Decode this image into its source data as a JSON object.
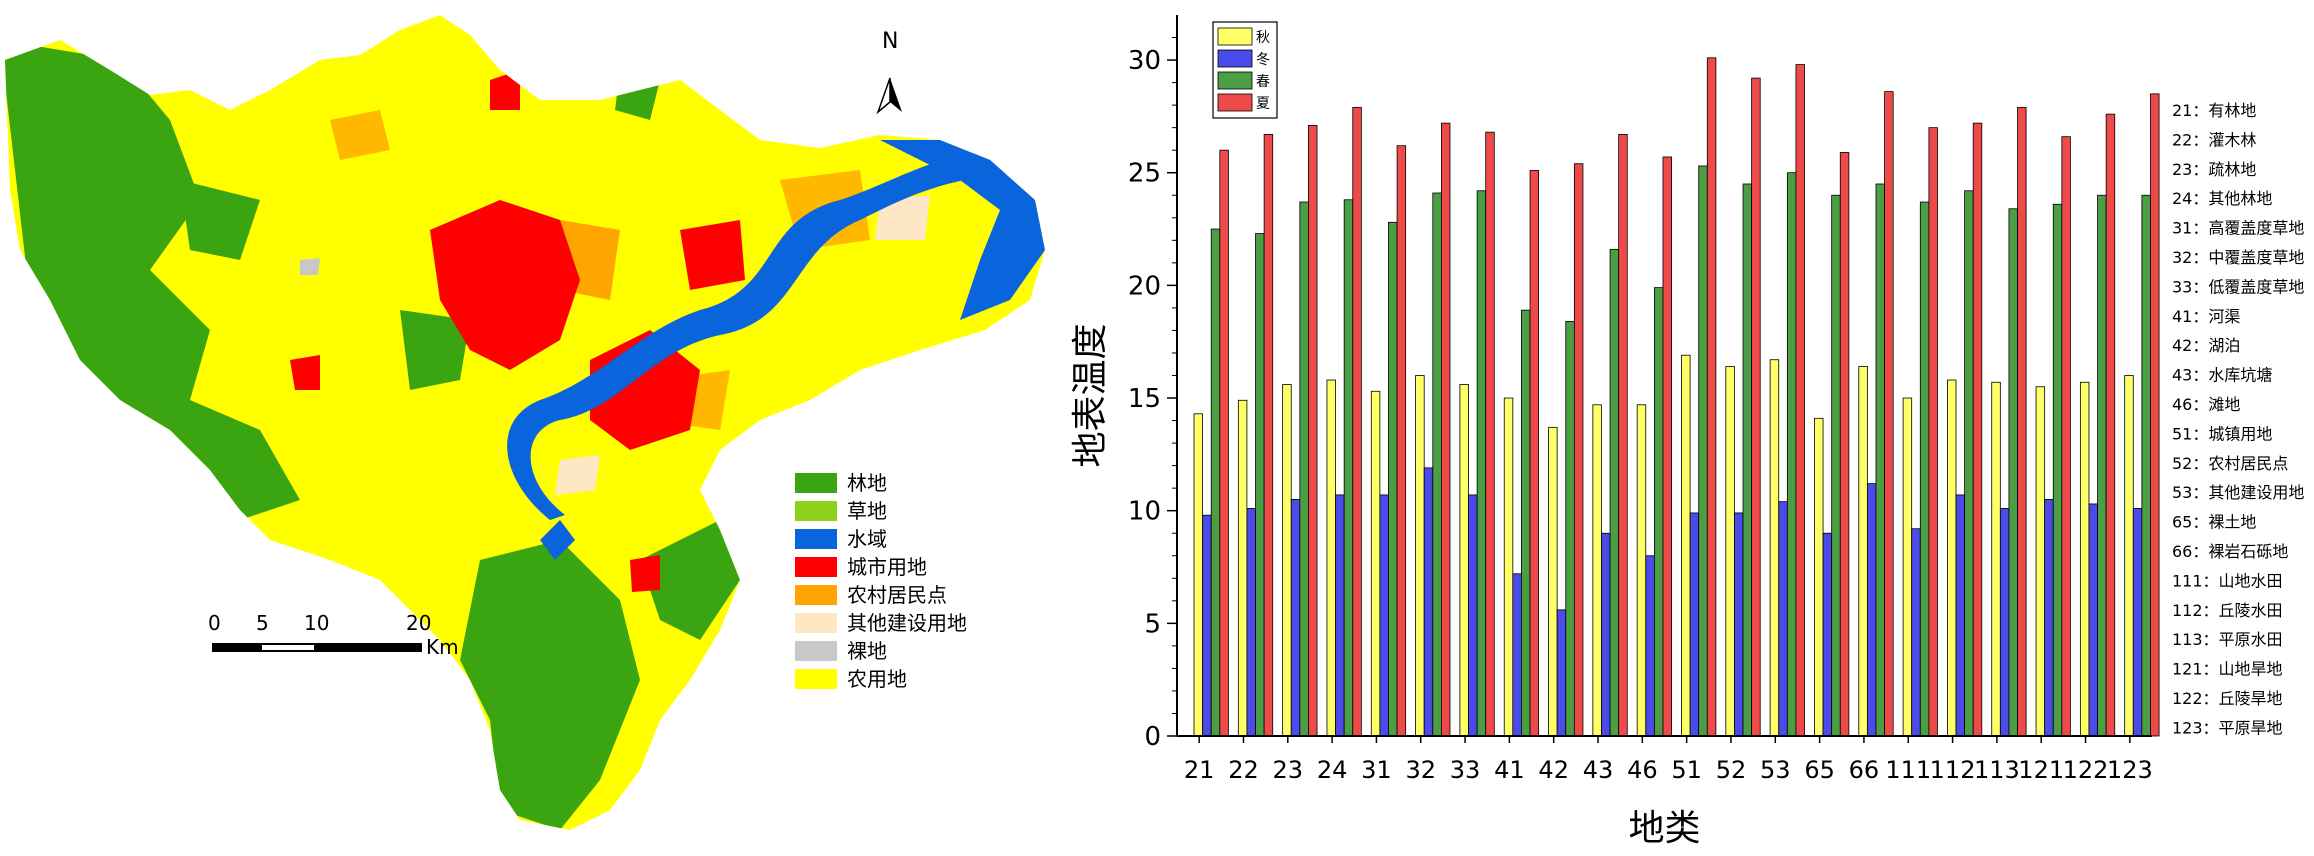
{
  "map": {
    "north_label": "N",
    "legend": [
      {
        "label": "林地",
        "color": "#3aa510"
      },
      {
        "label": "草地",
        "color": "#8fd21a"
      },
      {
        "label": "水域",
        "color": "#0a64dc"
      },
      {
        "label": "城市用地",
        "color": "#ff0000"
      },
      {
        "label": "农村居民点",
        "color": "#ffa500"
      },
      {
        "label": "其他建设用地",
        "color": "#fde7c4"
      },
      {
        "label": "裸地",
        "color": "#c8c8c8"
      },
      {
        "label": "农用地",
        "color": "#ffff00"
      }
    ],
    "scale_labels": [
      "0",
      "5",
      "10",
      "20"
    ],
    "scale_unit": "Km"
  },
  "chart_data": {
    "type": "bar",
    "xlabel": "地类",
    "ylabel": "地表温度",
    "ylim": [
      0,
      32
    ],
    "yticks": [
      0,
      5,
      10,
      15,
      20,
      25,
      30
    ],
    "categories": [
      "21",
      "22",
      "23",
      "24",
      "31",
      "32",
      "33",
      "41",
      "42",
      "43",
      "46",
      "51",
      "52",
      "53",
      "65",
      "66",
      "111",
      "112",
      "113",
      "121",
      "122",
      "123"
    ],
    "series": [
      {
        "name": "秋",
        "color": "#ffff66",
        "values": [
          14.3,
          14.9,
          15.6,
          15.8,
          15.3,
          16.0,
          15.6,
          15.0,
          13.7,
          14.7,
          14.7,
          16.9,
          16.4,
          16.7,
          14.1,
          16.4,
          15.0,
          15.8,
          15.7,
          15.5,
          15.7,
          16.0
        ]
      },
      {
        "name": "冬",
        "color": "#4b4bea",
        "values": [
          9.8,
          10.1,
          10.5,
          10.7,
          10.7,
          11.9,
          10.7,
          7.2,
          5.6,
          9.0,
          8.0,
          9.9,
          9.9,
          10.4,
          9.0,
          11.2,
          9.2,
          10.7,
          10.1,
          10.5,
          10.3,
          10.1
        ]
      },
      {
        "name": "春",
        "color": "#4c9e45",
        "values": [
          22.5,
          22.3,
          23.7,
          23.8,
          22.8,
          24.1,
          24.2,
          18.9,
          18.4,
          21.6,
          19.9,
          25.3,
          24.5,
          25.0,
          24.0,
          24.5,
          23.7,
          24.2,
          23.4,
          23.6,
          24.0,
          24.0
        ]
      },
      {
        "name": "夏",
        "color": "#ef4a4a",
        "values": [
          26.0,
          26.7,
          27.1,
          27.9,
          26.2,
          27.2,
          26.8,
          25.1,
          25.4,
          26.7,
          25.7,
          30.1,
          29.2,
          29.8,
          25.9,
          28.6,
          27.0,
          27.2,
          27.9,
          26.6,
          27.6,
          28.5
        ]
      }
    ],
    "legend_position": "top-left",
    "code_legend": [
      "21：有林地",
      "22：灌木林",
      "23：疏林地",
      "24：其他林地",
      "31：高覆盖度草地",
      "32：中覆盖度草地",
      "33：低覆盖度草地",
      "41：河渠",
      "42：湖泊",
      "43：水库坑塘",
      "46：滩地",
      "51：城镇用地",
      "52：农村居民点",
      "53：其他建设用地",
      "65：裸土地",
      "66：裸岩石砾地",
      "111：山地水田",
      "112：丘陵水田",
      "113：平原水田",
      "121：山地旱地",
      "122：丘陵旱地",
      "123：平原旱地"
    ]
  }
}
